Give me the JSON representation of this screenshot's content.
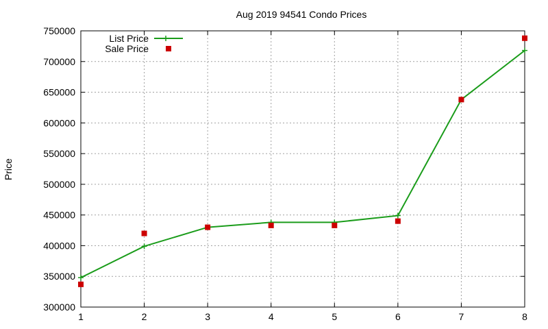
{
  "chart_data": {
    "type": "line",
    "title": "Aug 2019 94541 Condo Prices",
    "xlabel": "",
    "ylabel": "Price",
    "x": [
      1,
      2,
      3,
      4,
      5,
      6,
      7,
      8
    ],
    "xlim": [
      1,
      8
    ],
    "ylim": [
      300000,
      750000
    ],
    "xticks": [
      "1",
      "2",
      "3",
      "4",
      "5",
      "6",
      "7",
      "8"
    ],
    "yticks": [
      "300000",
      "350000",
      "400000",
      "450000",
      "500000",
      "550000",
      "600000",
      "650000",
      "700000",
      "750000"
    ],
    "grid": true,
    "legend_position": "top-left",
    "series": [
      {
        "name": "List Price",
        "style": "line-plus",
        "color": "#1a9c1a",
        "values": [
          348000,
          399000,
          430000,
          438000,
          438000,
          449000,
          638000,
          718000
        ]
      },
      {
        "name": "Sale Price",
        "style": "square-points",
        "color": "#cc0000",
        "values": [
          337000,
          420000,
          430000,
          433000,
          433000,
          440000,
          638000,
          738000
        ]
      }
    ]
  }
}
